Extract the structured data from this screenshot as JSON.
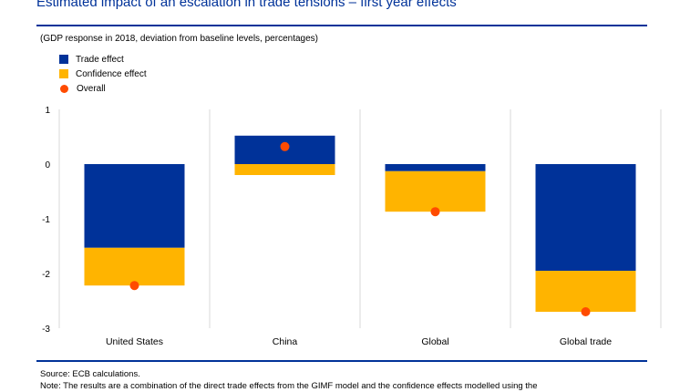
{
  "header": {
    "title": "Estimated impact of an escalation in trade tensions – first year effects",
    "subtitle": "(GDP response in 2018, deviation from baseline levels, percentages)"
  },
  "footer": {
    "source": "Source: ECB calculations.",
    "note": "Note: The results are a combination of the direct trade effects from the GIMF model and the confidence effects modelled using the"
  },
  "colors": {
    "trade": "#003299",
    "confidence": "#ffb400",
    "overall": "#ff4b00",
    "grid": "#d9d9d9",
    "accent": "#003299"
  },
  "chart_data": {
    "type": "bar",
    "stacked": true,
    "categories": [
      "United States",
      "China",
      "Global",
      "Global trade"
    ],
    "series": [
      {
        "name": "Trade effect",
        "values": [
          -1.53,
          0.52,
          -0.13,
          -1.95
        ]
      },
      {
        "name": "Confidence effect",
        "values": [
          -0.69,
          -0.2,
          -0.74,
          -0.75
        ]
      },
      {
        "name": "Overall",
        "values": [
          -2.22,
          0.32,
          -0.87,
          -2.7
        ],
        "style": "dot"
      }
    ],
    "y_ticks": [
      1,
      0,
      -1,
      -2,
      -3
    ],
    "ylim": [
      -3,
      1
    ],
    "legend_position": "top-left",
    "grid": "vertical category separators"
  }
}
